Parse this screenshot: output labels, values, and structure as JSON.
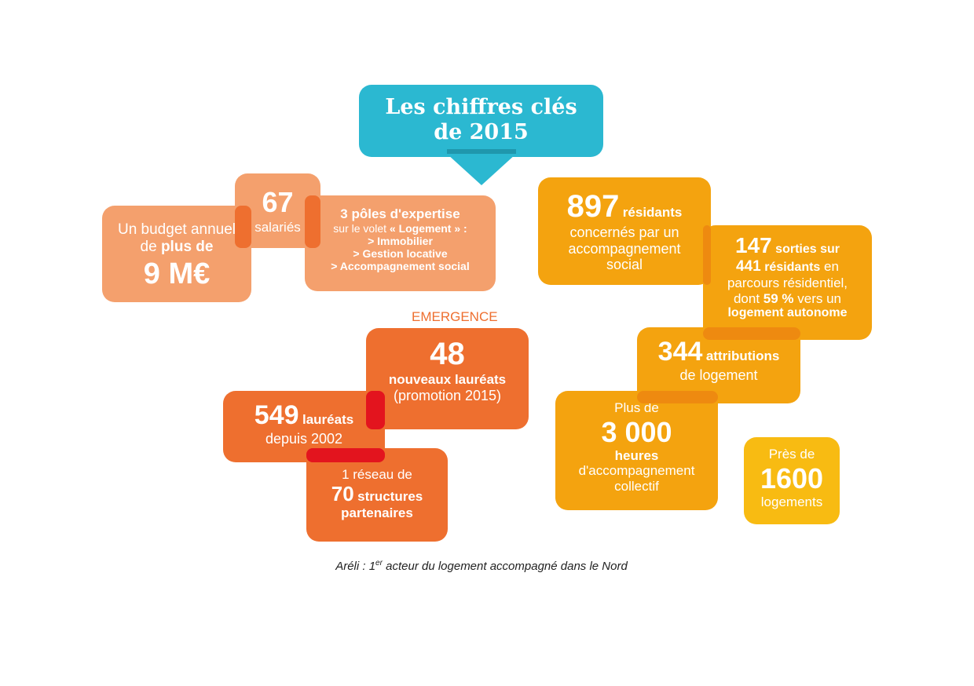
{
  "header": {
    "title_line1": "Les chiffres clés",
    "title_line2": "de 2015"
  },
  "left": {
    "budget": {
      "line1": "Un budget annuel",
      "line2_pre": "de ",
      "line2_bold": "plus de",
      "value": "9 M€"
    },
    "staff": {
      "value": "67",
      "label": "salariés"
    },
    "expertise": {
      "title": "3 pôles d'expertise",
      "sub_pre": "sur le volet ",
      "sub_bold": "« Logement » :",
      "items": [
        "> Immobilier",
        "> Gestion locative",
        "> Accompagnement social"
      ]
    }
  },
  "emergence": {
    "label": "EMERGENCE",
    "new": {
      "value": "48",
      "label": "nouveaux lauréats",
      "sub": "(promotion 2015)"
    },
    "total": {
      "value": "549",
      "label": "lauréats",
      "sub": "depuis 2002"
    },
    "network": {
      "line1": "1 réseau de",
      "value": "70",
      "label": "structures",
      "label2": "partenaires"
    }
  },
  "right": {
    "residents": {
      "value": "897",
      "label": "résidants",
      "line2": "concernés par un",
      "line3": "accompagnement",
      "line4": "social"
    },
    "exits": {
      "v1": "147",
      "l1": "sorties  sur",
      "v2": "441",
      "l2": "résidants",
      "l2b": " en",
      "line3": "parcours résidentiel,",
      "line4_pre": "dont ",
      "v3": "59 %",
      "line4_post": " vers un",
      "line5": "logement autonome"
    },
    "attributions": {
      "value": "344",
      "label": "attributions",
      "sub": "de logement"
    },
    "hours": {
      "pre": "Plus de",
      "value": "3 000",
      "label": "heures",
      "sub1": "d'accompagnement",
      "sub2": "collectif"
    },
    "housing": {
      "pre": "Près de",
      "value": "1600",
      "label": "logements"
    }
  },
  "footer": {
    "pre": "Aréli : 1",
    "sup": "er",
    "post": " acteur du logement accompagné dans le Nord"
  },
  "colors": {
    "teal": "#2bb8d1",
    "light_orange": "#f4a06d",
    "orange": "#ee6f2f",
    "amber": "#f4a30f",
    "yellow": "#f8bb12",
    "red_overlap": "#e3141e"
  }
}
